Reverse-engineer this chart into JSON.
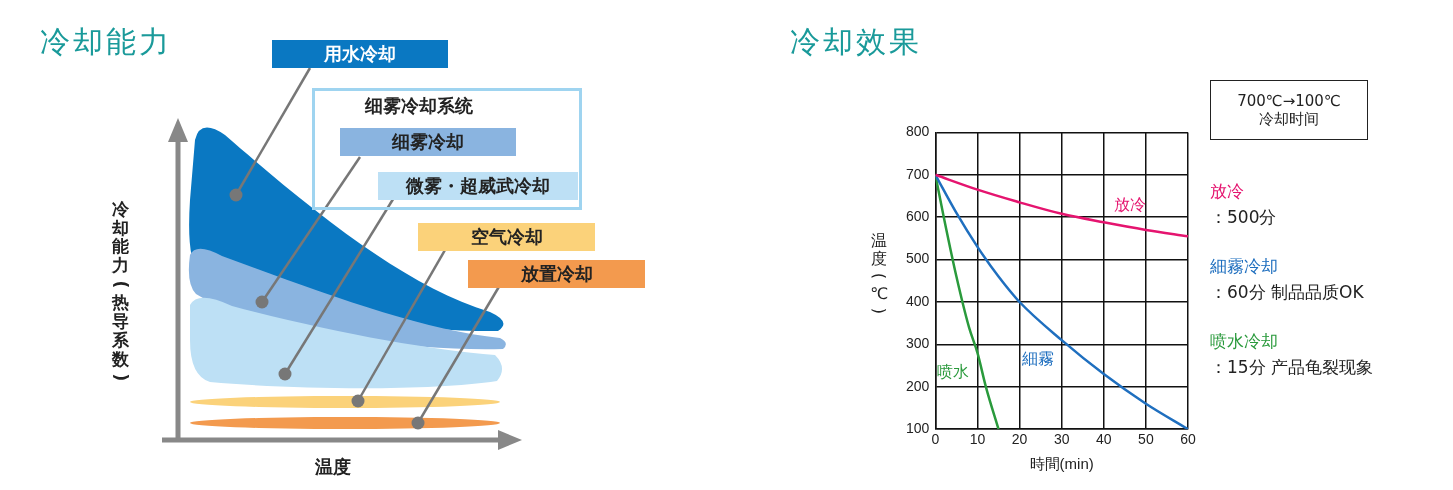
{
  "chart_data": [
    {
      "type": "other",
      "title": "冷却能力",
      "xlabel": "温度",
      "ylabel": "冷却能力(热导系数)",
      "annotations": [
        "用水冷却",
        "细雾冷却系统",
        "细雾冷却",
        "微雾・超威武冷却",
        "空气冷却",
        "放置冷却"
      ]
    },
    {
      "type": "line",
      "title": "冷却效果",
      "xlabel": "時間(min)",
      "ylabel": "温度(℃)",
      "xlim": [
        0,
        60
      ],
      "xticks": [
        0,
        10,
        20,
        30,
        40,
        50,
        60
      ],
      "ylim": [
        100,
        800
      ],
      "yticks": [
        100,
        200,
        300,
        400,
        500,
        600,
        700,
        800
      ],
      "grid": true,
      "marker": "none",
      "series": [
        {
          "name": "放冷",
          "color": "#e5146f",
          "x": [
            0,
            10,
            20,
            30,
            40,
            50,
            60
          ],
          "values": [
            700,
            665,
            635,
            608,
            588,
            570,
            555
          ]
        },
        {
          "name": "細霧",
          "color": "#1f6fbf",
          "x": [
            0,
            5,
            10,
            15,
            20,
            30,
            40,
            50,
            60
          ],
          "values": [
            700,
            610,
            530,
            460,
            400,
            310,
            230,
            160,
            100
          ]
        },
        {
          "name": "喷水",
          "color": "#2a9a3c",
          "x": [
            0,
            2,
            5,
            8,
            10,
            12,
            15
          ],
          "values": [
            700,
            600,
            460,
            340,
            280,
            200,
            100
          ]
        }
      ],
      "annotations": [
        "700℃→100℃",
        "冷却时间",
        "放冷",
        "：500分",
        "細霧冷却",
        "：60分 制品品质OK",
        "喷水冷却",
        "：15分 产品龟裂现象"
      ]
    }
  ]
}
